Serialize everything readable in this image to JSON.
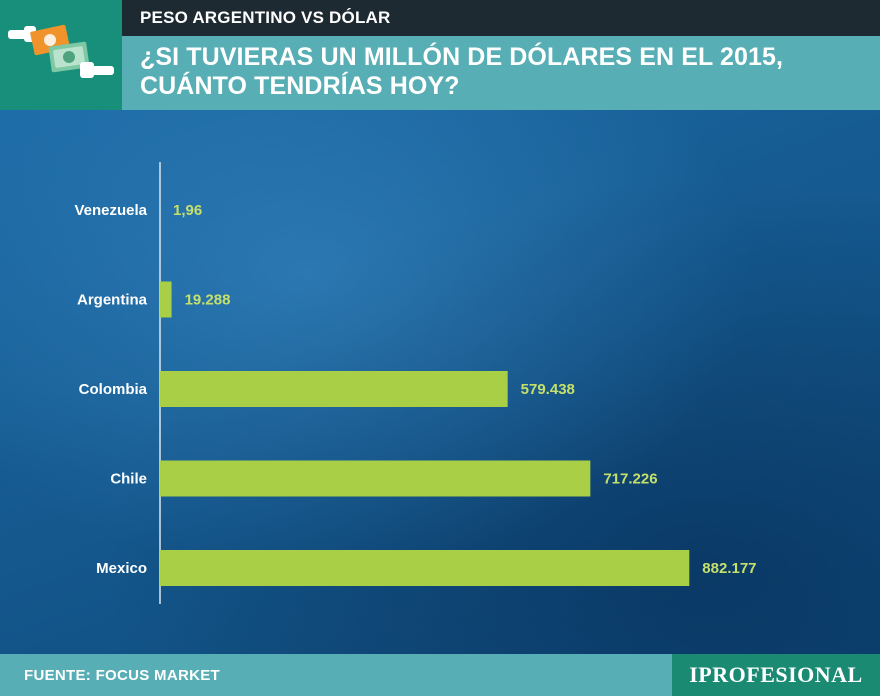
{
  "header": {
    "kicker": "PESO ARGENTINO VS DÓLAR",
    "title_line1": "¿SI TUVIERAS UN MILLÓN DE DÓLARES EN EL 2015,",
    "title_line2": "CUÁNTO TENDRÍAS HOY?",
    "logo_icon": "money-exchange-hands-icon"
  },
  "footer": {
    "source": "FUENTE: FOCUS MARKET",
    "brand": "IPROFESIONAL"
  },
  "colors": {
    "bar": "#a8cf45",
    "value_label": "#c5e06a",
    "axis": "#d9e6ee",
    "category_label": "#ffffff"
  },
  "chart_data": {
    "type": "bar",
    "orientation": "horizontal",
    "title": "¿SI TUVIERAS UN MILLÓN DE DÓLARES EN EL 2015, CUÁNTO TENDRÍAS HOY?",
    "xlabel": "",
    "ylabel": "",
    "xlim": [
      0,
      1000000
    ],
    "grid": false,
    "categories": [
      "Venezuela",
      "Argentina",
      "Colombia",
      "Chile",
      "Mexico"
    ],
    "values": [
      1.96,
      19288,
      579438,
      717226,
      882177
    ],
    "value_labels": [
      "1,96",
      "19.288",
      "579.438",
      "717.226",
      "882.177"
    ],
    "units": "USD"
  }
}
